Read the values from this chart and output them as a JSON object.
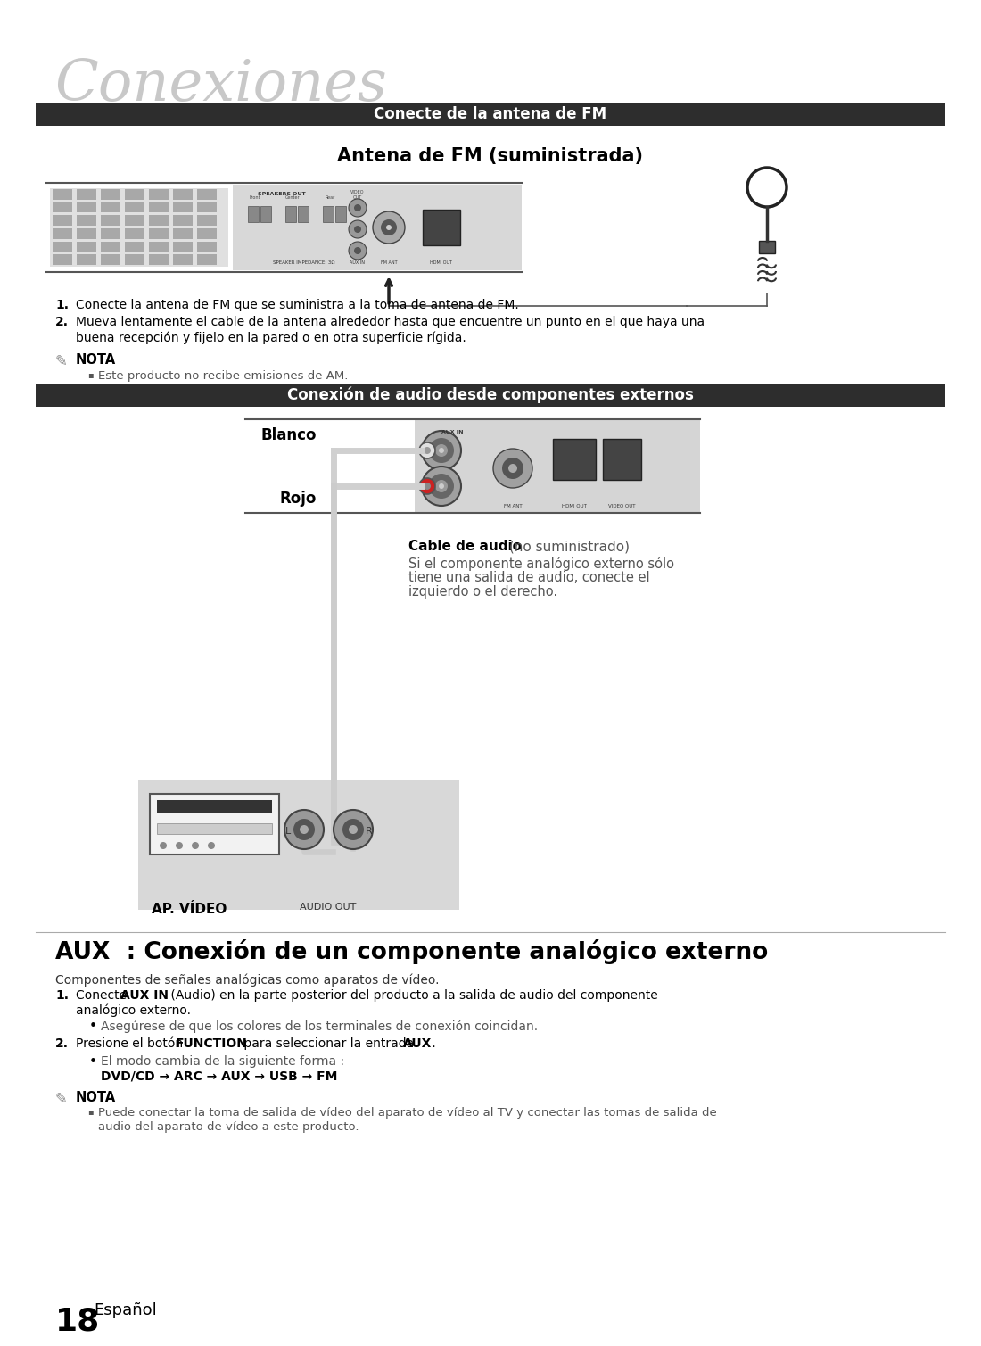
{
  "bg_color": "#ffffff",
  "title_text": "Conexiones",
  "title_font_size": 46,
  "title_color": "#c8c8c8",
  "header1_text": "Conecte de la antena de FM",
  "header1_bg": "#2d2d2d",
  "header1_color": "#ffffff",
  "header1_font_size": 12,
  "subtitle1_text": "Antena de FM (suministrada)",
  "subtitle1_font_size": 15,
  "header2_text": "Conexión de audio desde componentes externos",
  "header2_bg": "#2d2d2d",
  "header2_color": "#ffffff",
  "header2_font_size": 12,
  "section3_title": "AUX  : Conexión de un componente analógico externo",
  "section3_font_size": 19,
  "fm_step1": "Conecte la antena de FM que se suministra a la toma de antena de FM.",
  "fm_step2_line1": "Mueva lentamente el cable de la antena alrededor hasta que encuentre un punto en el que haya una",
  "fm_step2_line2": "buena recepción y fijelo en la pared o en otra superficie rígida.",
  "fm_nota_title": "NOTA",
  "fm_nota1": "Este producto no recibe emisiones de AM.",
  "aux_intro": "Componentes de señales analógicas como aparatos de vídeo.",
  "aux_step1a": "Conecte ",
  "aux_step1b": "AUX IN",
  "aux_step1c": " (Audio) en la parte posterior del producto a la salida de audio del componente",
  "aux_step1d": "analógico externo.",
  "aux_step1e": "Asegúrese de que los colores de los terminales de conexión coincidan.",
  "aux_step2a": "Presione el botón ",
  "aux_step2b": "FUNCTION",
  "aux_step2c": " para seleccionar la entrada ",
  "aux_step2d": "AUX",
  "aux_step2e": " .",
  "aux_step2f": "El modo cambia de la siguiente forma :",
  "aux_step2g": "DVD/CD → ARC → AUX → USB → FM",
  "aux_nota_title": "NOTA",
  "aux_nota1_line1": "Puede conectar la toma de salida de vídeo del aparato de vídeo al TV y conectar las tomas de salida de",
  "aux_nota1_line2": "audio del aparato de vídeo a este producto.",
  "page_num": "18",
  "page_lang": "Español",
  "cable_audio_bold": "Cable de audio",
  "cable_audio_rest": " (no suministrado)",
  "cable_desc_1": "Si el componente analógico externo sólo",
  "cable_desc_2": "tiene una salida de audio, conecte el",
  "cable_desc_3": "izquierdo o el derecho.",
  "blanco_label": "Blanco",
  "rojo_label": "Rojo",
  "ap_video_label": "AP. VÍDEO",
  "audio_out_label": "AUDIO OUT"
}
